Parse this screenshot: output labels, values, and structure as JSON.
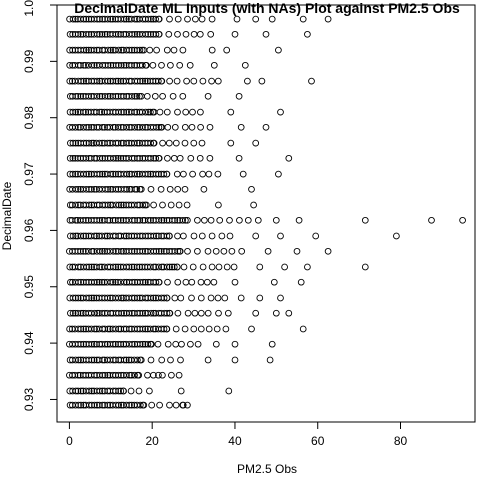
{
  "chart_data": {
    "type": "scatter",
    "title": "DecimalDate ML Inputs (with NAs) Plot against PM2.5 Obs",
    "xlabel": "PM2.5 Obs",
    "ylabel": "DecimalDate",
    "xlim": [
      -3,
      98
    ],
    "ylim": [
      0.926,
      1.0
    ],
    "x_ticks": [
      0,
      20,
      40,
      60,
      80
    ],
    "y_ticks": [
      0.93,
      0.94,
      0.95,
      0.96,
      0.97,
      0.98,
      0.99,
      1.0
    ],
    "x_tick_labels": [
      "0",
      "20",
      "40",
      "60",
      "80"
    ],
    "y_tick_labels": [
      "0.93",
      "0.94",
      "0.95",
      "0.96",
      "0.97",
      "0.98",
      "0.99",
      "1.00"
    ],
    "grid": false,
    "marker": "open-circle",
    "point_color": "#000000",
    "rows": [
      {
        "y": 0.929,
        "xmax": 29,
        "outliers": [
          27.5,
          28.5
        ]
      },
      {
        "y": 0.9315,
        "xmax": 21,
        "outliers": [
          27,
          38.5
        ]
      },
      {
        "y": 0.9343,
        "xmax": 27,
        "outliers": [
          21.5
        ]
      },
      {
        "y": 0.937,
        "xmax": 28,
        "outliers": [
          33.5,
          40,
          48.5
        ]
      },
      {
        "y": 0.9398,
        "xmax": 32,
        "outliers": [
          35.5,
          40,
          49
        ]
      },
      {
        "y": 0.9425,
        "xmax": 38,
        "outliers": [
          44,
          56.5
        ]
      },
      {
        "y": 0.9453,
        "xmax": 39,
        "outliers": [
          45,
          50,
          53
        ]
      },
      {
        "y": 0.948,
        "xmax": 38,
        "outliers": [
          41.5,
          46,
          51
        ]
      },
      {
        "y": 0.9508,
        "xmax": 35,
        "outliers": [
          40,
          49.5,
          56
        ]
      },
      {
        "y": 0.9535,
        "xmax": 42,
        "outliers": [
          46,
          52,
          57.5,
          71.5
        ]
      },
      {
        "y": 0.9563,
        "xmax": 43,
        "outliers": [
          48,
          55,
          62.5
        ]
      },
      {
        "y": 0.959,
        "xmax": 39,
        "outliers": [
          45,
          51,
          59.5,
          79
        ]
      },
      {
        "y": 0.9618,
        "xmax": 46,
        "outliers": [
          50,
          55.5,
          71.5,
          87.5,
          95
        ]
      },
      {
        "y": 0.9645,
        "xmax": 30,
        "outliers": [
          36,
          44.5
        ]
      },
      {
        "y": 0.9673,
        "xmax": 28,
        "outliers": [
          32.5,
          44
        ]
      },
      {
        "y": 0.97,
        "xmax": 38,
        "outliers": [
          42,
          50.5
        ]
      },
      {
        "y": 0.9728,
        "xmax": 35,
        "outliers": [
          41,
          53
        ]
      },
      {
        "y": 0.9755,
        "xmax": 33,
        "outliers": [
          39,
          45
        ]
      },
      {
        "y": 0.9783,
        "xmax": 36,
        "outliers": [
          41.5,
          47.5
        ]
      },
      {
        "y": 0.981,
        "xmax": 33,
        "outliers": [
          39,
          51
        ]
      },
      {
        "y": 0.9838,
        "xmax": 28,
        "outliers": [
          33.5,
          41
        ]
      },
      {
        "y": 0.9865,
        "xmax": 36,
        "outliers": [
          43,
          46.5,
          58.5
        ]
      },
      {
        "y": 0.9893,
        "xmax": 30,
        "outliers": [
          35,
          42.5
        ]
      },
      {
        "y": 0.992,
        "xmax": 29,
        "outliers": [
          34.5,
          38,
          50.5
        ]
      },
      {
        "y": 0.9948,
        "xmax": 35,
        "outliers": [
          40,
          47.5,
          57.5
        ]
      },
      {
        "y": 0.9975,
        "xmax": 35,
        "outliers": [
          40.5,
          45,
          49,
          56.5,
          62.5
        ]
      }
    ]
  }
}
